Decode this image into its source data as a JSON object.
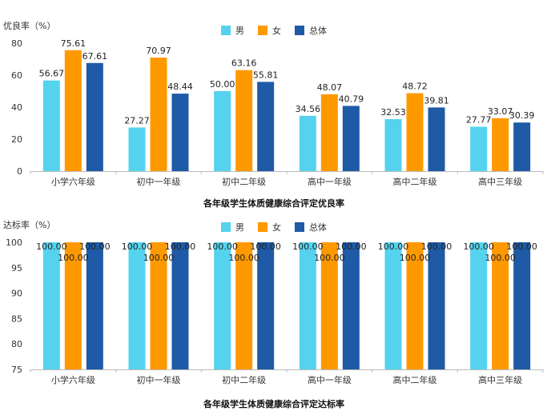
{
  "colors": {
    "male": "#55D3EE",
    "female": "#FF9900",
    "total": "#1E5AA6"
  },
  "chart_data": [
    {
      "type": "bar",
      "title": "各年级学生体质健康综合评定优良率",
      "ylabel": "优良率（%）",
      "ylim": [
        0,
        80
      ],
      "yticks": [
        0,
        20,
        40,
        60,
        80
      ],
      "categories": [
        "小学六年级",
        "初中一年级",
        "初中二年级",
        "高中一年级",
        "高中二年级",
        "高中三年级"
      ],
      "legend_position": "top-center",
      "series": [
        {
          "name": "男",
          "values": [
            56.67,
            27.27,
            50.0,
            34.56,
            32.53,
            27.77
          ]
        },
        {
          "name": "女",
          "values": [
            75.61,
            70.97,
            63.16,
            48.07,
            48.72,
            33.07
          ]
        },
        {
          "name": "总体",
          "values": [
            67.61,
            48.44,
            55.81,
            40.79,
            39.81,
            30.39
          ]
        }
      ],
      "data_labels": [
        [
          "56.67",
          "27.27",
          "50.00",
          "34.56",
          "32.53",
          "27.77"
        ],
        [
          "75.61",
          "70.97",
          "63.16",
          "48.07",
          "48.72",
          "33.07"
        ],
        [
          "67.61",
          "48.44",
          "55.81",
          "40.79",
          "39.81",
          "30.39"
        ]
      ]
    },
    {
      "type": "bar",
      "title": "各年级学生体质健康综合评定达标率",
      "ylabel": "达标率（%）",
      "ylim": [
        75,
        100
      ],
      "yticks": [
        75,
        80,
        85,
        90,
        95,
        100
      ],
      "categories": [
        "小学六年级",
        "初中一年级",
        "初中二年级",
        "高中一年级",
        "高中二年级",
        "高中三年级"
      ],
      "legend_position": "top-center",
      "series": [
        {
          "name": "男",
          "values": [
            100,
            100,
            100,
            100,
            100,
            100
          ]
        },
        {
          "name": "女",
          "values": [
            100,
            100,
            100,
            100,
            100,
            100
          ]
        },
        {
          "name": "总体",
          "values": [
            100,
            100,
            100,
            100,
            100,
            100
          ]
        }
      ],
      "data_labels": [
        [
          "100.00",
          "100.00",
          "100.00",
          "100.00",
          "100.00",
          "100.00"
        ],
        [
          "100.00",
          "100.00",
          "100.00",
          "100.00",
          "100.00",
          "100.00"
        ],
        [
          "100.00",
          "100.00",
          "100.00",
          "100.00",
          "100.00",
          "100.00"
        ]
      ]
    }
  ]
}
